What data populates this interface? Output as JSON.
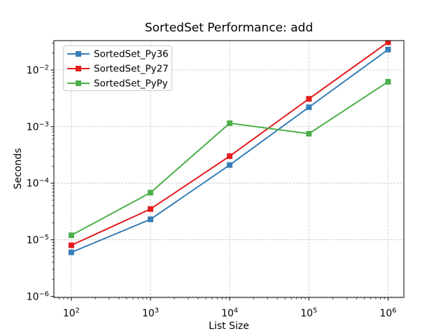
{
  "chart_data": {
    "type": "line",
    "title": "SortedSet Performance: add",
    "xlabel": "List Size",
    "ylabel": "Seconds",
    "x_scale": "log",
    "y_scale": "log",
    "x": [
      100,
      1000,
      10000,
      100000,
      1000000
    ],
    "series": [
      {
        "name": "SortedSet_Py36",
        "color": "#377eb8",
        "marker": "square",
        "values": [
          6e-06,
          2.3e-05,
          0.00021,
          0.0022,
          0.023
        ]
      },
      {
        "name": "SortedSet_Py27",
        "color": "#e41a1c",
        "marker": "square",
        "values": [
          8e-06,
          3.5e-05,
          0.0003,
          0.0031,
          0.031
        ]
      },
      {
        "name": "SortedSet_PyPy",
        "color": "#4daf4a",
        "marker": "square",
        "values": [
          1.2e-05,
          6.8e-05,
          0.00115,
          0.00075,
          0.0062
        ]
      }
    ],
    "x_tick_exponents": [
      2,
      3,
      4,
      5,
      6
    ],
    "y_tick_exponents": [
      -2,
      -3,
      -4,
      -5,
      -6
    ],
    "xlim_log10": [
      1.78,
      6.2
    ],
    "ylim_log10": [
      -6.02,
      -1.48
    ],
    "grid": true,
    "grid_style": "dashed",
    "grid_color": "#c7c7c7",
    "frame_color": "#000000",
    "background": "#ffffff",
    "legend_position": "upper-left"
  }
}
